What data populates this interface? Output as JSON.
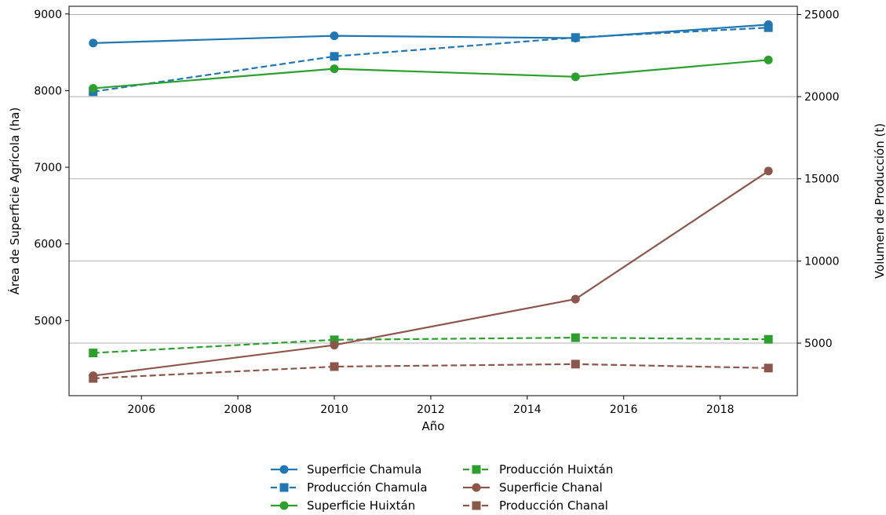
{
  "chart_data": {
    "type": "line",
    "xlabel": "Año",
    "ylabel": "Área de Superficie Agrícola (ha)",
    "y2label": "Volumen de Producción (t)",
    "xlim": [
      2004.5,
      2019.6
    ],
    "ylim": [
      4020,
      9100
    ],
    "y2lim": [
      1800,
      25500
    ],
    "xticks": [
      2006,
      2008,
      2010,
      2012,
      2014,
      2016,
      2018
    ],
    "yticks": [
      5000,
      6000,
      7000,
      8000,
      9000
    ],
    "y2ticks": [
      5000,
      10000,
      15000,
      20000,
      25000
    ],
    "grid": "horizontal, right axis",
    "legend_position": "bottom-center",
    "x": [
      2005,
      2010,
      2015,
      2019
    ],
    "series": [
      {
        "name": "Superficie Chamula",
        "axis": "left",
        "color": "#1f77b4",
        "linestyle": "solid",
        "marker": "circle",
        "values": [
          8620,
          8715,
          8685,
          8860
        ]
      },
      {
        "name": "Producción Chamula",
        "axis": "right",
        "color": "#1f77b4",
        "linestyle": "dashed",
        "marker": "square",
        "values": [
          20300,
          22450,
          23600,
          24200
        ]
      },
      {
        "name": "Superficie Huixtán",
        "axis": "left",
        "color": "#2ca02c",
        "linestyle": "solid",
        "marker": "circle",
        "values": [
          8030,
          8285,
          8180,
          8400
        ]
      },
      {
        "name": "Producción Huixtán",
        "axis": "right",
        "color": "#2ca02c",
        "linestyle": "dashed",
        "marker": "square",
        "values": [
          4400,
          5200,
          5330,
          5230
        ]
      },
      {
        "name": "Superficie Chanal",
        "axis": "left",
        "color": "#8c564b",
        "linestyle": "solid",
        "marker": "circle",
        "values": [
          4280,
          4680,
          5280,
          6950
        ]
      },
      {
        "name": "Producción Chanal",
        "axis": "right",
        "color": "#8c564b",
        "linestyle": "dashed",
        "marker": "square",
        "values": [
          2850,
          3570,
          3720,
          3480
        ]
      }
    ]
  }
}
